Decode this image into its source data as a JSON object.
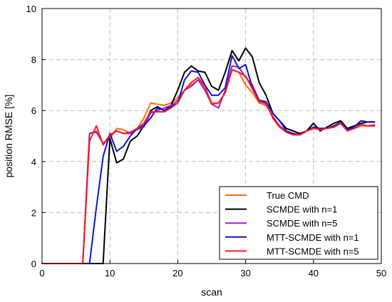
{
  "chart_data": {
    "type": "line",
    "title": "",
    "xlabel": "scan",
    "ylabel": "position RMSE [%]",
    "xlim": [
      0,
      50
    ],
    "ylim": [
      0,
      10
    ],
    "xticks": [
      "0",
      "10",
      "20",
      "30",
      "40",
      "50"
    ],
    "yticks": [
      "0",
      "2",
      "4",
      "6",
      "8",
      "10"
    ],
    "grid": true,
    "legend_position": "bottom-right",
    "series": [
      {
        "name": "True CMD",
        "color": "#ff6a1a",
        "x": [
          0,
          1,
          2,
          3,
          4,
          5,
          6,
          7,
          8,
          9,
          10,
          11,
          12,
          13,
          14,
          15,
          16,
          17,
          18,
          19,
          20,
          21,
          22,
          23,
          24,
          25,
          26,
          27,
          28,
          29,
          30,
          31,
          32,
          33,
          34,
          35,
          36,
          37,
          38,
          39,
          40,
          41,
          42,
          43,
          44,
          45,
          46,
          47,
          48,
          49
        ],
        "y": [
          0,
          0,
          0,
          0,
          0,
          0,
          0,
          5.1,
          5.2,
          4.7,
          4.9,
          5.3,
          5.25,
          5.1,
          5.3,
          5.7,
          6.3,
          6.25,
          6.2,
          6.3,
          6.5,
          6.8,
          7.0,
          7.2,
          6.9,
          6.3,
          6.3,
          6.7,
          7.6,
          7.5,
          7.0,
          6.7,
          6.3,
          6.2,
          5.8,
          5.4,
          5.2,
          5.1,
          5.05,
          5.2,
          5.3,
          5.25,
          5.3,
          5.35,
          5.5,
          5.2,
          5.3,
          5.4,
          5.4,
          5.45
        ]
      },
      {
        "name": "SCMDE with n=1",
        "color": "#000000",
        "x": [
          0,
          1,
          2,
          3,
          4,
          5,
          6,
          7,
          8,
          9,
          10,
          11,
          12,
          13,
          14,
          15,
          16,
          17,
          18,
          19,
          20,
          21,
          22,
          23,
          24,
          25,
          26,
          27,
          28,
          29,
          30,
          31,
          32,
          33,
          34,
          35,
          36,
          37,
          38,
          39,
          40,
          41,
          42,
          43,
          44,
          45,
          46,
          47,
          48,
          49
        ],
        "y": [
          0,
          0,
          0,
          0,
          0,
          0,
          0,
          0,
          0,
          0,
          4.9,
          3.95,
          4.1,
          4.8,
          5.0,
          5.4,
          6.0,
          6.15,
          6.0,
          6.2,
          6.8,
          7.5,
          7.75,
          7.55,
          7.5,
          6.95,
          6.8,
          7.5,
          8.35,
          7.95,
          8.45,
          8.1,
          7.1,
          6.6,
          5.9,
          5.6,
          5.3,
          5.2,
          5.1,
          5.2,
          5.5,
          5.2,
          5.35,
          5.5,
          5.6,
          5.3,
          5.4,
          5.5,
          5.55,
          5.55
        ]
      },
      {
        "name": "SCMDE with n=5",
        "color": "#9b1fd2",
        "x": [
          0,
          1,
          2,
          3,
          4,
          5,
          6,
          7,
          8,
          9,
          10,
          11,
          12,
          13,
          14,
          15,
          16,
          17,
          18,
          19,
          20,
          21,
          22,
          23,
          24,
          25,
          26,
          27,
          28,
          29,
          30,
          31,
          32,
          33,
          34,
          35,
          36,
          37,
          38,
          39,
          40,
          41,
          42,
          43,
          44,
          45,
          46,
          47,
          48,
          49
        ],
        "y": [
          0,
          0,
          0,
          0,
          0,
          0,
          0,
          5.1,
          5.15,
          4.7,
          5.0,
          5.2,
          5.1,
          5.1,
          5.25,
          5.35,
          5.9,
          6.0,
          6.1,
          6.2,
          6.4,
          6.8,
          6.95,
          7.2,
          6.8,
          6.25,
          6.1,
          6.8,
          7.75,
          7.7,
          7.3,
          7.0,
          6.4,
          6.25,
          5.75,
          5.4,
          5.15,
          5.05,
          5.05,
          5.2,
          5.3,
          5.3,
          5.3,
          5.4,
          5.5,
          5.25,
          5.3,
          5.45,
          5.4,
          5.4
        ]
      },
      {
        "name": "MTT-SCMDE with n=1",
        "color": "#1010e0",
        "x": [
          0,
          1,
          2,
          3,
          4,
          5,
          6,
          7,
          8,
          9,
          10,
          11,
          12,
          13,
          14,
          15,
          16,
          17,
          18,
          19,
          20,
          21,
          22,
          23,
          24,
          25,
          26,
          27,
          28,
          29,
          30,
          31,
          32,
          33,
          34,
          35,
          36,
          37,
          38,
          39,
          40,
          41,
          42,
          43,
          44,
          45,
          46,
          47,
          48,
          49
        ],
        "y": [
          0,
          0,
          0,
          0,
          0,
          0,
          0,
          0,
          2.2,
          4.2,
          5.1,
          4.4,
          4.6,
          5.0,
          5.3,
          5.4,
          5.7,
          6.1,
          6.0,
          6.15,
          6.3,
          7.2,
          7.55,
          7.5,
          7.0,
          6.6,
          6.6,
          6.9,
          8.15,
          7.65,
          7.8,
          6.9,
          6.4,
          6.35,
          5.9,
          5.6,
          5.2,
          5.1,
          5.05,
          5.2,
          5.35,
          5.3,
          5.3,
          5.4,
          5.55,
          5.25,
          5.35,
          5.6,
          5.55,
          5.55
        ]
      },
      {
        "name": "MTT-SCMDE with n=5",
        "color": "#ff1a1a",
        "x": [
          0,
          1,
          2,
          3,
          4,
          5,
          6,
          7,
          8,
          9,
          10,
          11,
          12,
          13,
          14,
          15,
          16,
          17,
          18,
          19,
          20,
          21,
          22,
          23,
          24,
          25,
          26,
          27,
          28,
          29,
          30,
          31,
          32,
          33,
          34,
          35,
          36,
          37,
          38,
          39,
          40,
          41,
          42,
          43,
          44,
          45,
          46,
          47,
          48,
          49
        ],
        "y": [
          0,
          0,
          0,
          0,
          0,
          0,
          0,
          4.8,
          5.4,
          4.65,
          5.05,
          5.2,
          5.1,
          5.15,
          5.3,
          5.5,
          5.95,
          5.95,
          5.95,
          6.1,
          6.3,
          6.8,
          7.1,
          7.3,
          6.95,
          6.25,
          6.3,
          6.7,
          7.6,
          7.5,
          7.35,
          6.85,
          6.35,
          6.3,
          5.7,
          5.35,
          5.15,
          5.05,
          5.05,
          5.2,
          5.3,
          5.25,
          5.3,
          5.35,
          5.5,
          5.2,
          5.3,
          5.45,
          5.4,
          5.4
        ]
      }
    ]
  }
}
